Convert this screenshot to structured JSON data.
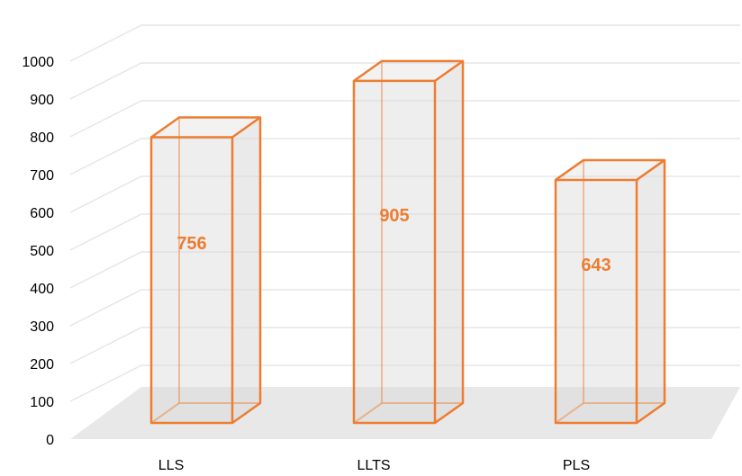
{
  "colors": {
    "bar_stroke": "#ED7D31",
    "bar_fill": "#D9D9D9",
    "floor": "#E8E8E8",
    "gridline": "#E6E6E6",
    "label": "#ED7D31"
  },
  "chart_data": {
    "type": "bar",
    "style": "3d-clustered-column",
    "title": "",
    "xlabel": "",
    "ylabel": "",
    "categories": [
      "LLS",
      "LLTS",
      "PLS"
    ],
    "values": [
      756,
      905,
      643
    ],
    "data_labels": [
      "756",
      "905",
      "643"
    ],
    "ylim": [
      0,
      1000
    ],
    "yticks": [
      "0",
      "100",
      "200",
      "300",
      "400",
      "500",
      "600",
      "700",
      "800",
      "900",
      "1000"
    ],
    "grid": true,
    "legend": "none"
  }
}
